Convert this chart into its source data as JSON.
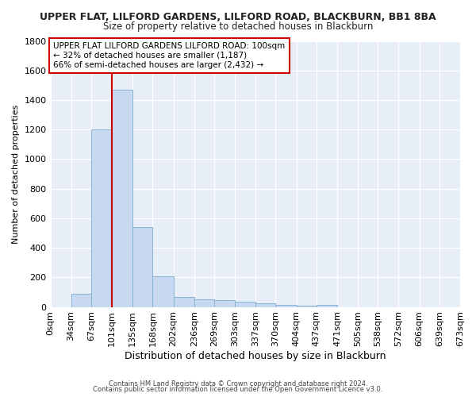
{
  "title1": "UPPER FLAT, LILFORD GARDENS, LILFORD ROAD, BLACKBURN, BB1 8BA",
  "title2": "Size of property relative to detached houses in Blackburn",
  "xlabel": "Distribution of detached houses by size in Blackburn",
  "ylabel": "Number of detached properties",
  "bins": [
    0,
    34,
    67,
    101,
    135,
    168,
    202,
    236,
    269,
    303,
    337,
    370,
    404,
    437,
    471,
    505,
    538,
    572,
    606,
    639,
    673
  ],
  "bin_labels": [
    "0sqm",
    "34sqm",
    "67sqm",
    "101sqm",
    "135sqm",
    "168sqm",
    "202sqm",
    "236sqm",
    "269sqm",
    "303sqm",
    "337sqm",
    "370sqm",
    "404sqm",
    "437sqm",
    "471sqm",
    "505sqm",
    "538sqm",
    "572sqm",
    "606sqm",
    "639sqm",
    "673sqm"
  ],
  "counts": [
    0,
    90,
    1200,
    1470,
    540,
    205,
    70,
    50,
    45,
    35,
    25,
    15,
    10,
    15,
    0,
    0,
    0,
    0,
    0,
    0
  ],
  "bar_color": "#c6d9f0",
  "bar_edge_color": "#8ab4d4",
  "vline_x": 101,
  "vline_color": "#cc0000",
  "annotation_text": "UPPER FLAT LILFORD GARDENS LILFORD ROAD: 100sqm\n← 32% of detached houses are smaller (1,187)\n66% of semi-detached houses are larger (2,432) →",
  "annotation_box_color": "#ffffff",
  "annotation_box_edge": "#cc0000",
  "ylim": [
    0,
    1800
  ],
  "yticks": [
    0,
    200,
    400,
    600,
    800,
    1000,
    1200,
    1400,
    1600,
    1800
  ],
  "footer1": "Contains HM Land Registry data © Crown copyright and database right 2024.",
  "footer2": "Contains public sector information licensed under the Open Government Licence v3.0.",
  "fig_bg_color": "#ffffff",
  "plot_bg_color": "#e8eef8",
  "grid_color": "#ffffff"
}
